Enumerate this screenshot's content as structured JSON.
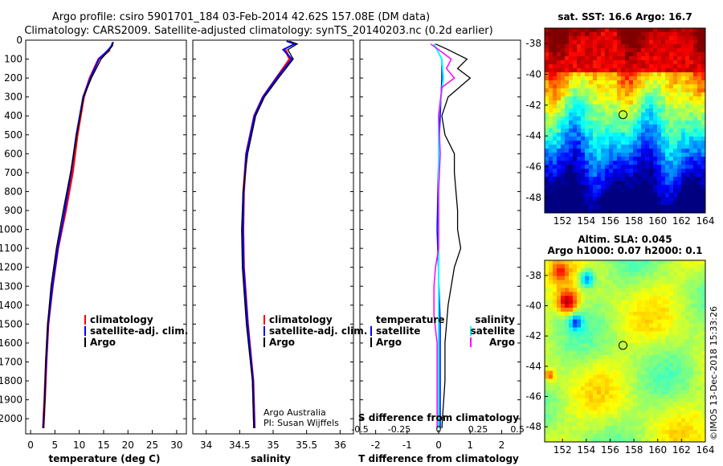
{
  "header": {
    "line1": "Argo profile: csiro 5901701_184 03-Feb-2014 42.62S 157.08E (DM data)",
    "line2": "Climatology: CARS2009. Satellite-adjusted climatology: synTS_20140203.nc (0.2d earlier)"
  },
  "colors": {
    "climatology": "#ff0000",
    "satellite": "#0000ff",
    "argo": "#000000",
    "salinity_satellite": "#00ffff",
    "salinity_argo": "#ff00ff"
  },
  "chart_data": [
    {
      "type": "line",
      "id": "temperature",
      "xlabel": "temperature (deg C)",
      "ylabel": "",
      "xlim": [
        -1,
        32
      ],
      "ylim": [
        2080,
        0
      ],
      "xticks": [
        "0",
        "5",
        "10",
        "15",
        "20",
        "25",
        "30"
      ],
      "xtick_values": [
        0,
        5,
        10,
        15,
        20,
        25,
        30
      ],
      "yticks": [
        "0",
        "100",
        "200",
        "300",
        "400",
        "500",
        "600",
        "700",
        "800",
        "900",
        "1000",
        "1100",
        "1200",
        "1300",
        "1400",
        "1500",
        "1600",
        "1700",
        "1800",
        "1900",
        "2000"
      ],
      "ytick_values": [
        0,
        100,
        200,
        300,
        400,
        500,
        600,
        700,
        800,
        900,
        1000,
        1100,
        1200,
        1300,
        1400,
        1500,
        1600,
        1700,
        1800,
        1900,
        2000
      ],
      "legend": [
        "climatology",
        "satellite-adj. clim.",
        "Argo"
      ],
      "series": [
        {
          "name": "climatology",
          "depth": [
            2050,
            1900,
            1700,
            1500,
            1300,
            1100,
            900,
            700,
            500,
            300,
            200,
            100,
            50
          ],
          "values": [
            2.6,
            2.9,
            3.2,
            3.6,
            4.5,
            5.6,
            7.2,
            8.6,
            9.6,
            10.9,
            12.2,
            14.0,
            16.3
          ]
        },
        {
          "name": "satellite-adj. clim.",
          "depth": [
            2050,
            1900,
            1700,
            1500,
            1300,
            1100,
            900,
            700,
            500,
            300,
            200,
            100,
            50,
            30,
            10
          ],
          "values": [
            2.6,
            2.9,
            3.2,
            3.6,
            4.5,
            5.6,
            7.0,
            8.3,
            9.4,
            10.8,
            12.3,
            14.0,
            16.0,
            16.6,
            16.9
          ]
        },
        {
          "name": "Argo",
          "depth": [
            2050,
            1900,
            1700,
            1500,
            1300,
            1100,
            900,
            700,
            500,
            300,
            200,
            100,
            50,
            30,
            10
          ],
          "values": [
            2.7,
            2.9,
            3.1,
            3.5,
            4.2,
            5.3,
            6.7,
            8.2,
            9.5,
            10.9,
            12.5,
            14.5,
            16.2,
            16.8,
            17.0
          ]
        }
      ]
    },
    {
      "type": "line",
      "id": "salinity",
      "xlabel": "salinity",
      "xlim": [
        33.8,
        36.2
      ],
      "ylim": [
        2080,
        0
      ],
      "xticks": [
        "34",
        "34.5",
        "35",
        "35.5",
        "36"
      ],
      "xtick_values": [
        34,
        34.5,
        35,
        35.5,
        36
      ],
      "legend": [
        "climatology",
        "satellite-adj. clim.",
        "Argo"
      ],
      "annotations": [
        "Argo Australia",
        "PI: Susan Wijffels"
      ],
      "series": [
        {
          "name": "climatology",
          "depth": [
            2050,
            1800,
            1500,
            1200,
            1000,
            800,
            600,
            400,
            300,
            200,
            100,
            50
          ],
          "values": [
            34.72,
            34.7,
            34.62,
            34.56,
            34.55,
            34.56,
            34.6,
            34.72,
            34.85,
            35.05,
            35.25,
            35.18
          ]
        },
        {
          "name": "satellite-adj. clim.",
          "depth": [
            2050,
            1800,
            1500,
            1200,
            1000,
            800,
            600,
            400,
            300,
            200,
            100,
            50,
            20,
            5
          ],
          "values": [
            34.72,
            34.7,
            34.62,
            34.56,
            34.55,
            34.56,
            34.6,
            34.72,
            34.85,
            35.05,
            35.28,
            35.15,
            35.32,
            35.2
          ]
        },
        {
          "name": "Argo",
          "depth": [
            2050,
            1800,
            1500,
            1200,
            1000,
            800,
            600,
            400,
            300,
            200,
            100,
            50,
            20,
            5
          ],
          "values": [
            34.71,
            34.69,
            34.6,
            34.54,
            34.53,
            34.55,
            34.62,
            34.74,
            34.87,
            35.08,
            35.3,
            35.22,
            35.36,
            35.24
          ]
        }
      ]
    },
    {
      "type": "line",
      "id": "difference",
      "xlabel": "T difference from climatology",
      "top_label": "S difference from climatology",
      "xlim": [
        -2.5,
        2.6
      ],
      "ylim": [
        2080,
        0
      ],
      "xticks": [
        "-2",
        "-1",
        "0",
        "1",
        "2"
      ],
      "xtick_values": [
        -2,
        -1,
        0,
        1,
        2
      ],
      "top_ticks": [
        "-0.5",
        "-0.25",
        "0",
        "0.25",
        "0.5"
      ],
      "top_tick_values": [
        -0.5,
        -0.25,
        0,
        0.25,
        0.5
      ],
      "legend_left_title": "temperature",
      "legend_right_title": "salinity",
      "legend_left": [
        "satellite",
        "Argo"
      ],
      "legend_right": [
        "satellite",
        "Argo"
      ],
      "series": [
        {
          "name": "temperature satellite",
          "depth": [
            2050,
            1500,
            1000,
            600,
            400,
            200,
            100,
            20
          ],
          "values": [
            0.05,
            0.05,
            -0.05,
            0.0,
            0.05,
            0.1,
            0.1,
            -0.15
          ]
        },
        {
          "name": "temperature Argo",
          "depth": [
            2050,
            1800,
            1600,
            1400,
            1200,
            1100,
            1000,
            900,
            700,
            600,
            500,
            400,
            300,
            200,
            150,
            100,
            50,
            20
          ],
          "values": [
            0.1,
            0.2,
            0.2,
            0.3,
            0.5,
            0.7,
            0.6,
            0.6,
            0.5,
            0.5,
            0.2,
            0.1,
            0.3,
            1.0,
            0.6,
            0.9,
            0.3,
            -0.1
          ]
        },
        {
          "name": "salinity satellite",
          "depth": [
            2050,
            1500,
            1000,
            600,
            400,
            200,
            100,
            20
          ],
          "values": [
            0.0,
            0.0,
            0.0,
            0.0,
            0.0,
            0.03,
            0.02,
            -0.03
          ]
        },
        {
          "name": "salinity Argo",
          "depth": [
            2050,
            1600,
            1450,
            1300,
            1200,
            1100,
            1000,
            800,
            600,
            400,
            250,
            200,
            150,
            100,
            50,
            20
          ],
          "values": [
            -0.01,
            -0.01,
            -0.03,
            -0.03,
            -0.02,
            0.0,
            0.0,
            0.0,
            0.01,
            0.0,
            0.02,
            0.1,
            0.05,
            0.08,
            0.0,
            -0.05
          ]
        }
      ]
    },
    {
      "type": "heatmap",
      "id": "sst_map",
      "title": "sat. SST: 16.6 Argo: 16.7",
      "xlim": [
        150.5,
        164
      ],
      "ylim": [
        -49,
        -37
      ],
      "xticks": [
        "152",
        "154",
        "156",
        "158",
        "160",
        "162",
        "164"
      ],
      "yticks": [
        "-38",
        "-40",
        "-42",
        "-44",
        "-46",
        "-48"
      ],
      "marker": {
        "lon": 157.08,
        "lat": -42.62
      }
    },
    {
      "type": "heatmap",
      "id": "sla_map",
      "title": "Altim. SLA: 0.045",
      "subtitle": "Argo h1000: 0.07 h2000: 0.1",
      "xlim": [
        150.5,
        164
      ],
      "ylim": [
        -49,
        -37
      ],
      "xticks": [
        "152",
        "154",
        "156",
        "158",
        "160",
        "162",
        "164"
      ],
      "yticks": [
        "-38",
        "-40",
        "-42",
        "-44",
        "-46",
        "-48"
      ],
      "marker": {
        "lon": 157.08,
        "lat": -42.62
      }
    }
  ],
  "footer": {
    "stamp": "©IMOS 13-Dec-2018 15:33:26"
  }
}
